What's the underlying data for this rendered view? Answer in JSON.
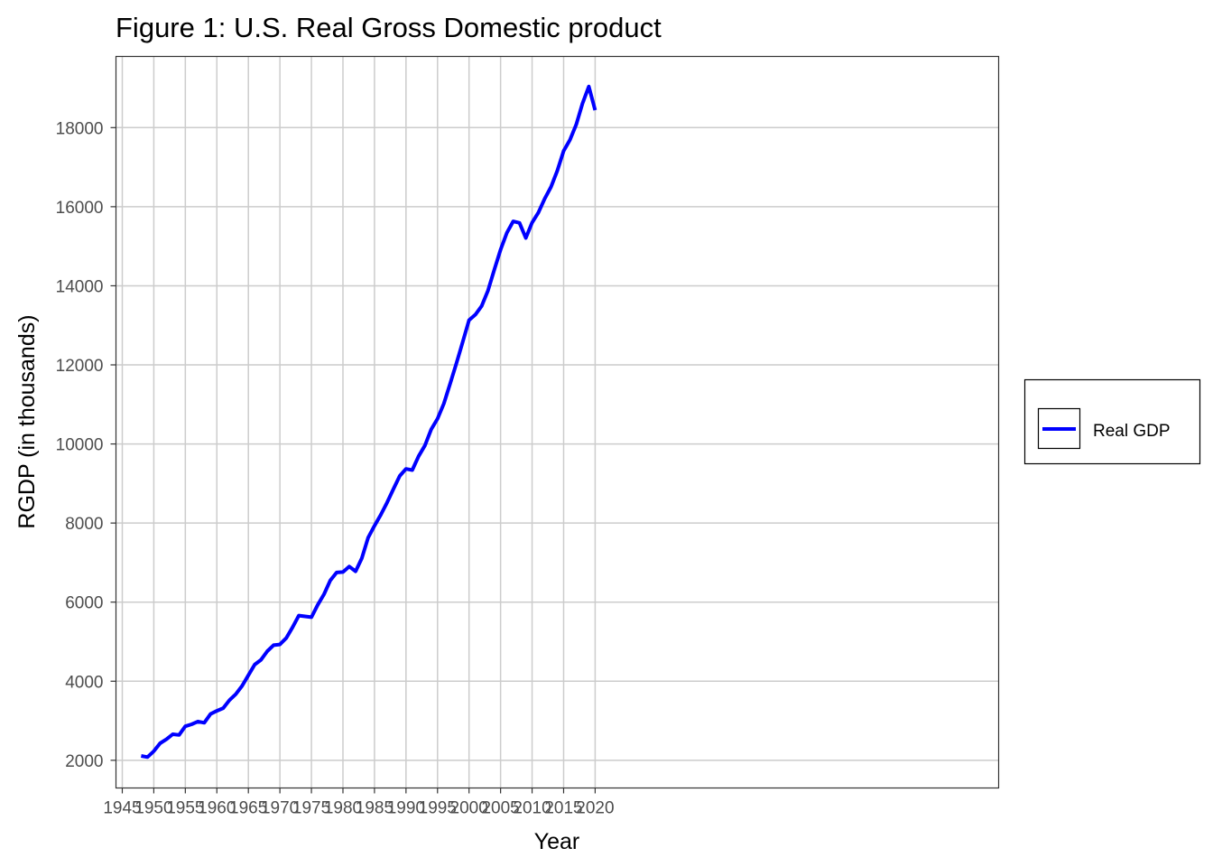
{
  "chart_data": {
    "type": "line",
    "title": "Figure 1: U.S. Real Gross Domestic product",
    "xlabel": "Year",
    "ylabel": "RGDP (in thousands)",
    "xlim": [
      1944,
      2084
    ],
    "ylim": [
      1300,
      19800
    ],
    "x_ticks": [
      1945,
      1950,
      1955,
      1960,
      1965,
      1970,
      1975,
      1980,
      1985,
      1990,
      1995,
      2000,
      2005,
      2010,
      2015,
      2020
    ],
    "y_ticks": [
      2000,
      4000,
      6000,
      8000,
      10000,
      12000,
      14000,
      16000,
      18000
    ],
    "grid": true,
    "legend_position": "right",
    "series": [
      {
        "name": "Real GDP",
        "color": "#0000ff",
        "x": [
          1948,
          1949,
          1950,
          1951,
          1952,
          1953,
          1954,
          1955,
          1956,
          1957,
          1958,
          1959,
          1960,
          1961,
          1962,
          1963,
          1964,
          1965,
          1966,
          1967,
          1968,
          1969,
          1970,
          1971,
          1972,
          1973,
          1974,
          1975,
          1976,
          1977,
          1978,
          1979,
          1980,
          1981,
          1982,
          1983,
          1984,
          1985,
          1986,
          1987,
          1988,
          1989,
          1990,
          1991,
          1992,
          1993,
          1994,
          1995,
          1996,
          1997,
          1998,
          1999,
          2000,
          2001,
          2002,
          2003,
          2004,
          2005,
          2006,
          2007,
          2008,
          2009,
          2010,
          2011,
          2012,
          2013,
          2014,
          2015,
          2016,
          2017,
          2018,
          2019,
          2020
        ],
        "y": [
          2110,
          2080,
          2230,
          2430,
          2530,
          2660,
          2640,
          2860,
          2910,
          2980,
          2950,
          3170,
          3250,
          3320,
          3520,
          3670,
          3880,
          4150,
          4420,
          4540,
          4760,
          4910,
          4930,
          5090,
          5360,
          5660,
          5640,
          5620,
          5930,
          6200,
          6550,
          6750,
          6760,
          6900,
          6780,
          7110,
          7630,
          7930,
          8210,
          8520,
          8860,
          9190,
          9370,
          9340,
          9690,
          9960,
          10370,
          10640,
          11020,
          11520,
          12040,
          12580,
          13130,
          13270,
          13490,
          13880,
          14400,
          14910,
          15340,
          15630,
          15590,
          15210,
          15600,
          15850,
          16200,
          16500,
          16910,
          17410,
          17690,
          18080,
          18610,
          19040,
          18440
        ]
      }
    ]
  }
}
